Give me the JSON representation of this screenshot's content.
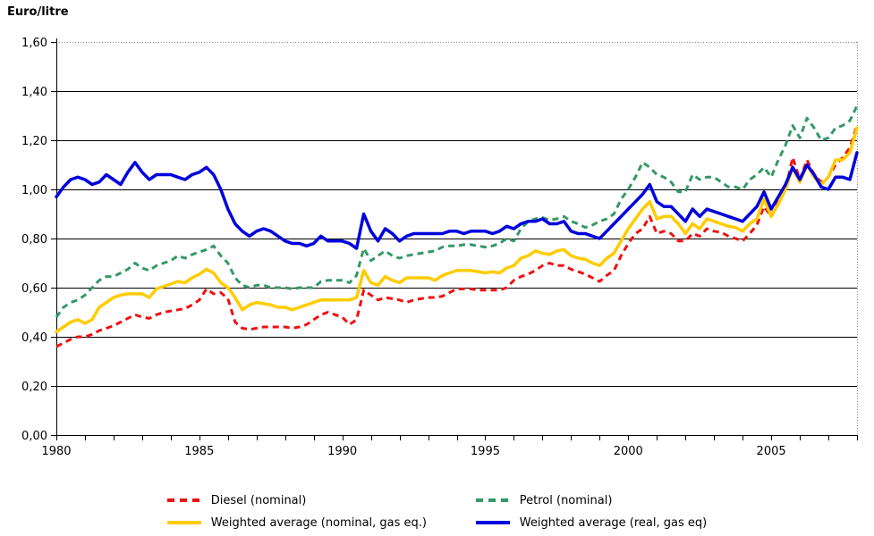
{
  "title": "Euro/litre",
  "chart_data": {
    "type": "line",
    "title": "",
    "ylabel": "Euro/litre",
    "xlabel": "",
    "x_start": 1980,
    "x_step": 0.25,
    "x_end": 2008,
    "ylim": [
      0,
      1.6
    ],
    "y_tick_interval": 0.2,
    "y_tick_labels": [
      "0,00",
      "0,20",
      "0,40",
      "0,60",
      "0,80",
      "1,00",
      "1,20",
      "1,40",
      "1,60"
    ],
    "x_tick_labels": [
      "1980",
      "1985",
      "1990",
      "1995",
      "2000",
      "2005"
    ],
    "x_tick_years_labeled": [
      1980,
      1985,
      1990,
      1995,
      2000,
      2005
    ],
    "grid": "horizontal-solid-black, top-and-right-border-dotted-grey",
    "legend_position": "bottom",
    "series": [
      {
        "name": "Diesel (nominal)",
        "color": "#EE1111",
        "style": "dashed",
        "values": [
          0.36,
          0.375,
          0.39,
          0.4,
          0.4,
          0.41,
          0.425,
          0.435,
          0.445,
          0.46,
          0.475,
          0.49,
          0.48,
          0.475,
          0.49,
          0.5,
          0.505,
          0.51,
          0.515,
          0.53,
          0.55,
          0.595,
          0.575,
          0.58,
          0.555,
          0.46,
          0.435,
          0.43,
          0.435,
          0.44,
          0.44,
          0.44,
          0.44,
          0.435,
          0.44,
          0.45,
          0.47,
          0.49,
          0.5,
          0.49,
          0.48,
          0.45,
          0.47,
          0.59,
          0.57,
          0.55,
          0.56,
          0.555,
          0.55,
          0.54,
          0.55,
          0.555,
          0.56,
          0.56,
          0.565,
          0.58,
          0.595,
          0.595,
          0.595,
          0.59,
          0.59,
          0.59,
          0.59,
          0.6,
          0.63,
          0.645,
          0.655,
          0.67,
          0.69,
          0.7,
          0.69,
          0.69,
          0.675,
          0.665,
          0.655,
          0.64,
          0.625,
          0.65,
          0.67,
          0.73,
          0.78,
          0.82,
          0.84,
          0.89,
          0.82,
          0.83,
          0.82,
          0.79,
          0.79,
          0.82,
          0.81,
          0.84,
          0.83,
          0.825,
          0.81,
          0.8,
          0.79,
          0.82,
          0.855,
          0.93,
          0.89,
          0.95,
          1.0,
          1.13,
          1.04,
          1.12,
          1.06,
          1.03,
          1.05,
          1.1,
          1.13,
          1.17,
          1.26
        ]
      },
      {
        "name": "Petrol (nominal)",
        "color": "#339966",
        "style": "dashed",
        "values": [
          0.48,
          0.52,
          0.54,
          0.55,
          0.57,
          0.6,
          0.63,
          0.645,
          0.645,
          0.66,
          0.675,
          0.7,
          0.68,
          0.67,
          0.69,
          0.7,
          0.71,
          0.73,
          0.72,
          0.735,
          0.745,
          0.755,
          0.77,
          0.73,
          0.7,
          0.64,
          0.61,
          0.6,
          0.61,
          0.61,
          0.6,
          0.6,
          0.6,
          0.595,
          0.6,
          0.6,
          0.6,
          0.625,
          0.63,
          0.63,
          0.63,
          0.62,
          0.65,
          0.76,
          0.71,
          0.73,
          0.75,
          0.73,
          0.72,
          0.73,
          0.735,
          0.74,
          0.745,
          0.75,
          0.765,
          0.77,
          0.77,
          0.775,
          0.775,
          0.77,
          0.765,
          0.77,
          0.78,
          0.8,
          0.79,
          0.84,
          0.87,
          0.88,
          0.885,
          0.875,
          0.88,
          0.89,
          0.87,
          0.86,
          0.845,
          0.855,
          0.87,
          0.88,
          0.9,
          0.96,
          1.0,
          1.05,
          1.11,
          1.09,
          1.06,
          1.05,
          1.03,
          0.99,
          0.99,
          1.06,
          1.04,
          1.05,
          1.05,
          1.03,
          1.01,
          1.01,
          1.0,
          1.04,
          1.06,
          1.09,
          1.05,
          1.12,
          1.18,
          1.26,
          1.21,
          1.29,
          1.25,
          1.2,
          1.21,
          1.25,
          1.26,
          1.28,
          1.34
        ]
      },
      {
        "name": "Weighted average (nominal, gas eq.)",
        "color": "#FFCC00",
        "style": "solid",
        "values": [
          0.42,
          0.44,
          0.46,
          0.47,
          0.455,
          0.47,
          0.52,
          0.54,
          0.56,
          0.57,
          0.575,
          0.575,
          0.575,
          0.56,
          0.595,
          0.605,
          0.615,
          0.625,
          0.62,
          0.64,
          0.655,
          0.675,
          0.66,
          0.62,
          0.6,
          0.56,
          0.51,
          0.53,
          0.54,
          0.535,
          0.53,
          0.52,
          0.52,
          0.51,
          0.52,
          0.53,
          0.54,
          0.55,
          0.55,
          0.55,
          0.55,
          0.55,
          0.56,
          0.67,
          0.62,
          0.61,
          0.645,
          0.63,
          0.62,
          0.64,
          0.64,
          0.64,
          0.64,
          0.63,
          0.65,
          0.66,
          0.67,
          0.67,
          0.67,
          0.665,
          0.66,
          0.665,
          0.66,
          0.68,
          0.69,
          0.72,
          0.73,
          0.75,
          0.74,
          0.735,
          0.75,
          0.755,
          0.73,
          0.72,
          0.715,
          0.7,
          0.69,
          0.72,
          0.74,
          0.79,
          0.84,
          0.88,
          0.92,
          0.95,
          0.88,
          0.89,
          0.89,
          0.86,
          0.82,
          0.86,
          0.84,
          0.88,
          0.87,
          0.86,
          0.85,
          0.845,
          0.83,
          0.86,
          0.88,
          0.96,
          0.89,
          0.94,
          1.0,
          1.09,
          1.03,
          1.1,
          1.05,
          1.02,
          1.05,
          1.12,
          1.12,
          1.15,
          1.25
        ]
      },
      {
        "name": "Weighted average (real, gas eq)",
        "color": "#0000DD",
        "style": "solid",
        "values": [
          0.97,
          1.01,
          1.04,
          1.05,
          1.04,
          1.02,
          1.03,
          1.06,
          1.04,
          1.02,
          1.07,
          1.11,
          1.07,
          1.04,
          1.06,
          1.06,
          1.06,
          1.05,
          1.04,
          1.06,
          1.07,
          1.09,
          1.06,
          1.0,
          0.92,
          0.86,
          0.83,
          0.81,
          0.83,
          0.84,
          0.83,
          0.81,
          0.79,
          0.78,
          0.78,
          0.77,
          0.78,
          0.81,
          0.79,
          0.79,
          0.79,
          0.78,
          0.76,
          0.9,
          0.83,
          0.79,
          0.84,
          0.82,
          0.79,
          0.81,
          0.82,
          0.82,
          0.82,
          0.82,
          0.82,
          0.83,
          0.83,
          0.82,
          0.83,
          0.83,
          0.83,
          0.82,
          0.83,
          0.85,
          0.84,
          0.86,
          0.87,
          0.87,
          0.88,
          0.86,
          0.86,
          0.87,
          0.83,
          0.82,
          0.82,
          0.81,
          0.8,
          0.83,
          0.86,
          0.89,
          0.92,
          0.95,
          0.98,
          1.02,
          0.95,
          0.93,
          0.93,
          0.9,
          0.87,
          0.92,
          0.89,
          0.92,
          0.91,
          0.9,
          0.89,
          0.88,
          0.87,
          0.9,
          0.93,
          0.99,
          0.92,
          0.97,
          1.02,
          1.09,
          1.04,
          1.1,
          1.06,
          1.01,
          1.0,
          1.05,
          1.05,
          1.04,
          1.15
        ]
      }
    ]
  }
}
